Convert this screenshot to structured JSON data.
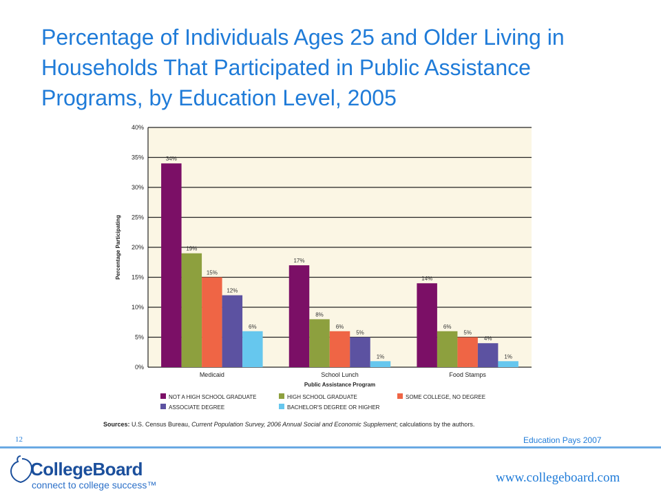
{
  "slide": {
    "title": "Percentage of Individuals Ages 25 and Older Living in Households That Participated in Public Assistance Programs, by Education Level, 2005",
    "sources_label": "Sources:",
    "sources_text_1": " U.S. Census Bureau, ",
    "sources_italic": "Current Population Survey, 2006 Annual Social and Economic Supplement",
    "sources_text_2": "; calculations by the authors.",
    "page_number": "12",
    "publication": "Education Pays 2007",
    "url": "www.collegeboard.com",
    "logo_text": "CollegeBoard",
    "logo_tagline": "connect to college success™"
  },
  "chart_data": {
    "type": "bar",
    "title": "",
    "xlabel": "Public Assistance Program",
    "ylabel": "Percentage Participating",
    "ylim": [
      0,
      40
    ],
    "yticks": [
      "0%",
      "5%",
      "10%",
      "15%",
      "20%",
      "25%",
      "30%",
      "35%",
      "40%"
    ],
    "grid": true,
    "legend_position": "bottom",
    "categories": [
      "Medicaid",
      "School Lunch",
      "Food Stamps"
    ],
    "series": [
      {
        "name": "NOT A HIGH SCHOOL GRADUATE",
        "color": "#7b0f66",
        "values": [
          34,
          17,
          14
        ],
        "labels": [
          "34%",
          "17%",
          "14%"
        ]
      },
      {
        "name": "HIGH SCHOOL GRADUATE",
        "color": "#8da03e",
        "values": [
          19,
          8,
          6
        ],
        "labels": [
          "19%",
          "8%",
          "6%"
        ]
      },
      {
        "name": "SOME COLLEGE, NO DEGREE",
        "color": "#ef6545",
        "values": [
          15,
          6,
          5
        ],
        "labels": [
          "15%",
          "6%",
          "5%"
        ]
      },
      {
        "name": "ASSOCIATE DEGREE",
        "color": "#5c52a1",
        "values": [
          12,
          5,
          4
        ],
        "labels": [
          "12%",
          "5%",
          "4%"
        ]
      },
      {
        "name": "BACHELOR'S DEGREE OR HIGHER",
        "color": "#66c7ee",
        "values": [
          6,
          1,
          1
        ],
        "labels": [
          "6%",
          "1%",
          "1%"
        ]
      }
    ],
    "plot_background": "#fbf6e4"
  }
}
